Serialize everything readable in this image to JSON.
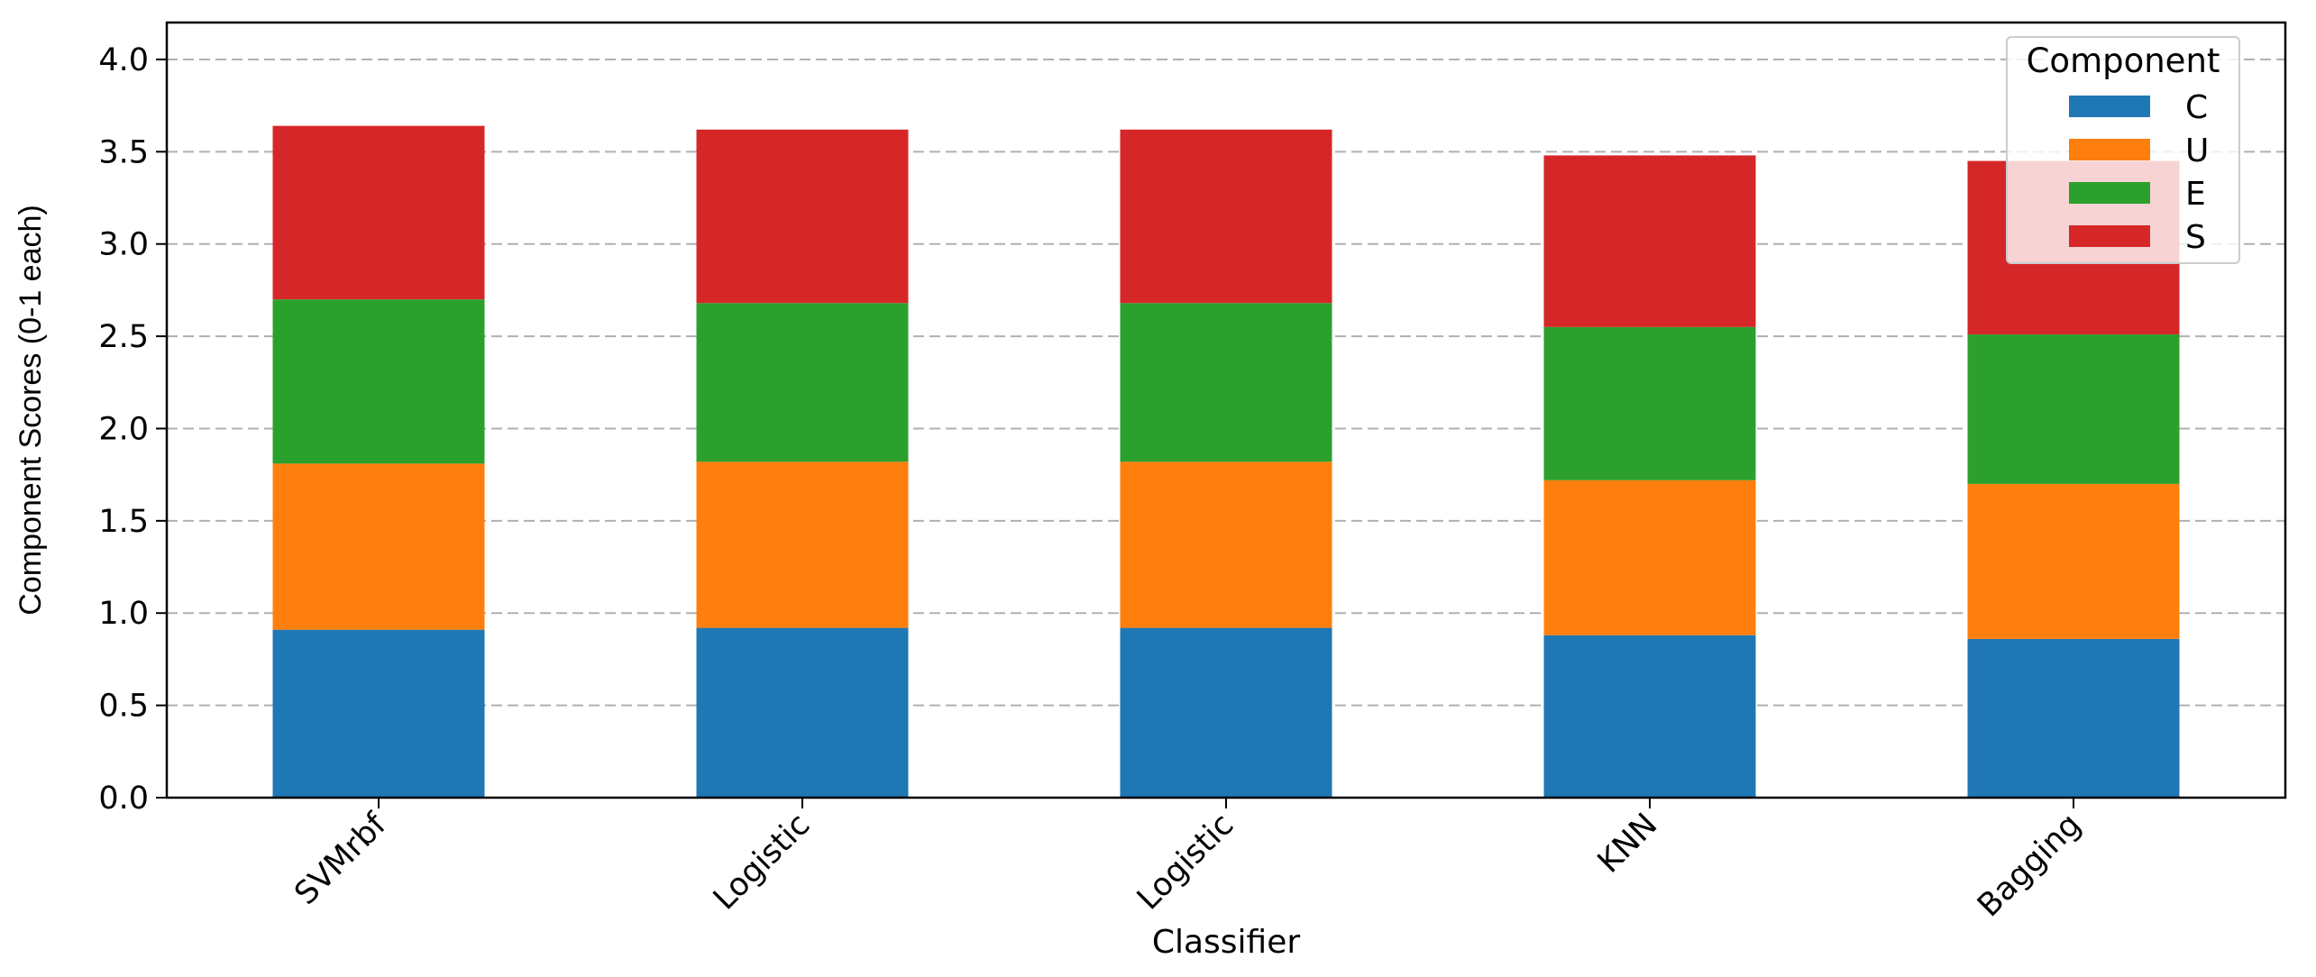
{
  "chart_data": {
    "type": "bar",
    "stacked": true,
    "categories": [
      "SVMrbf",
      "Logistic",
      "Logistic",
      "KNN",
      "Bagging"
    ],
    "series": [
      {
        "name": "C",
        "color": "#1f77b4",
        "values": [
          0.91,
          0.92,
          0.92,
          0.88,
          0.86
        ]
      },
      {
        "name": "U",
        "color": "#ff7f0e",
        "values": [
          0.9,
          0.9,
          0.9,
          0.84,
          0.84
        ]
      },
      {
        "name": "E",
        "color": "#2ca02c",
        "values": [
          0.89,
          0.86,
          0.86,
          0.83,
          0.81
        ]
      },
      {
        "name": "S",
        "color": "#d62728",
        "values": [
          0.94,
          0.94,
          0.94,
          0.93,
          0.94
        ]
      }
    ],
    "xlabel": "Classifier",
    "ylabel": "Component Scores (0-1 each)",
    "ylim": [
      0,
      4.2
    ],
    "yticks": [
      "0.0",
      "0.5",
      "1.0",
      "1.5",
      "2.0",
      "2.5",
      "3.0",
      "3.5",
      "4.0"
    ],
    "legend": {
      "title": "Component",
      "placement": "top-right"
    },
    "grid": {
      "y": true,
      "style": "dashed"
    }
  }
}
